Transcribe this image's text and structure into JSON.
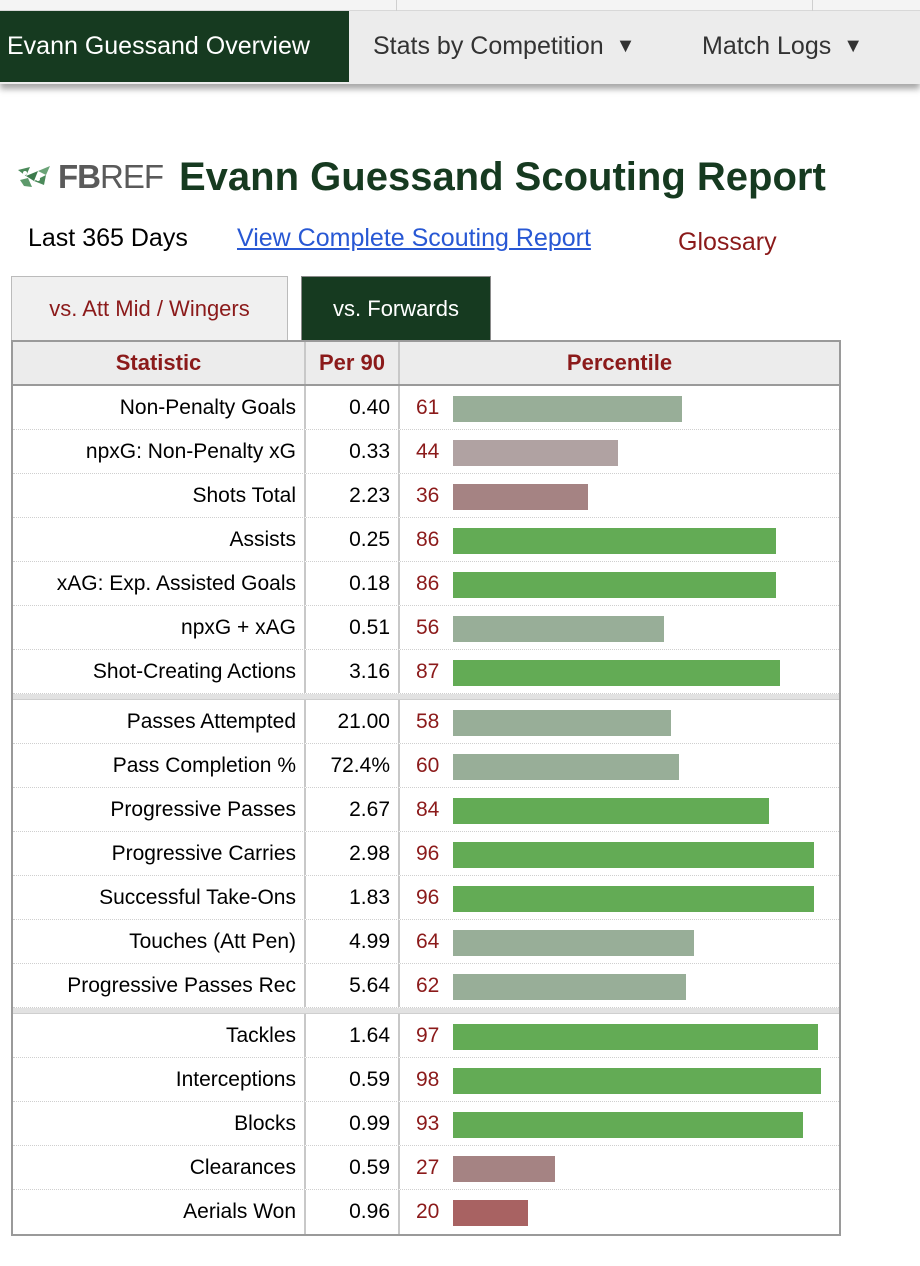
{
  "nav": {
    "items": [
      {
        "label": "Evann Guessand Overview",
        "active": true
      },
      {
        "label": "Stats by Competition",
        "caret": "▼"
      },
      {
        "label": "Match Logs",
        "caret": "▼"
      }
    ]
  },
  "header": {
    "logo_fb": "FB",
    "logo_ref": "REF",
    "title": "Evann Guessand Scouting Report"
  },
  "sublinks": {
    "period": "Last 365 Days",
    "complete_link": "View Complete Scouting Report",
    "glossary": "Glossary"
  },
  "tabs": [
    {
      "label": "vs. Att Mid / Wingers",
      "active": false
    },
    {
      "label": "vs. Forwards",
      "active": true
    }
  ],
  "table": {
    "headers": [
      "Statistic",
      "Per 90",
      "Percentile"
    ],
    "groups": [
      [
        {
          "stat": "Non-Penalty Goals",
          "per90": "0.40",
          "pct": 61
        },
        {
          "stat": "npxG: Non-Penalty xG",
          "per90": "0.33",
          "pct": 44
        },
        {
          "stat": "Shots Total",
          "per90": "2.23",
          "pct": 36
        },
        {
          "stat": "Assists",
          "per90": "0.25",
          "pct": 86
        },
        {
          "stat": "xAG: Exp. Assisted Goals",
          "per90": "0.18",
          "pct": 86
        },
        {
          "stat": "npxG + xAG",
          "per90": "0.51",
          "pct": 56
        },
        {
          "stat": "Shot-Creating Actions",
          "per90": "3.16",
          "pct": 87
        }
      ],
      [
        {
          "stat": "Passes Attempted",
          "per90": "21.00",
          "pct": 58
        },
        {
          "stat": "Pass Completion %",
          "per90": "72.4%",
          "pct": 60
        },
        {
          "stat": "Progressive Passes",
          "per90": "2.67",
          "pct": 84
        },
        {
          "stat": "Progressive Carries",
          "per90": "2.98",
          "pct": 96
        },
        {
          "stat": "Successful Take-Ons",
          "per90": "1.83",
          "pct": 96
        },
        {
          "stat": "Touches (Att Pen)",
          "per90": "4.99",
          "pct": 64
        },
        {
          "stat": "Progressive Passes Rec",
          "per90": "5.64",
          "pct": 62
        }
      ],
      [
        {
          "stat": "Tackles",
          "per90": "1.64",
          "pct": 97
        },
        {
          "stat": "Interceptions",
          "per90": "0.59",
          "pct": 98
        },
        {
          "stat": "Blocks",
          "per90": "0.99",
          "pct": 93
        },
        {
          "stat": "Clearances",
          "per90": "0.59",
          "pct": 27
        },
        {
          "stat": "Aerials Won",
          "per90": "0.96",
          "pct": 20
        }
      ]
    ]
  },
  "colors": {
    "brand_dark_green": "#163a20",
    "link_blue": "#2858d4",
    "accent_red": "#8b1a1a",
    "bar_high": "#63ab55",
    "bar_mid_good": "#98ae98",
    "bar_mid_low": "#b0a2a2",
    "bar_low": "#a58383",
    "bar_very_low": "#a86262"
  }
}
